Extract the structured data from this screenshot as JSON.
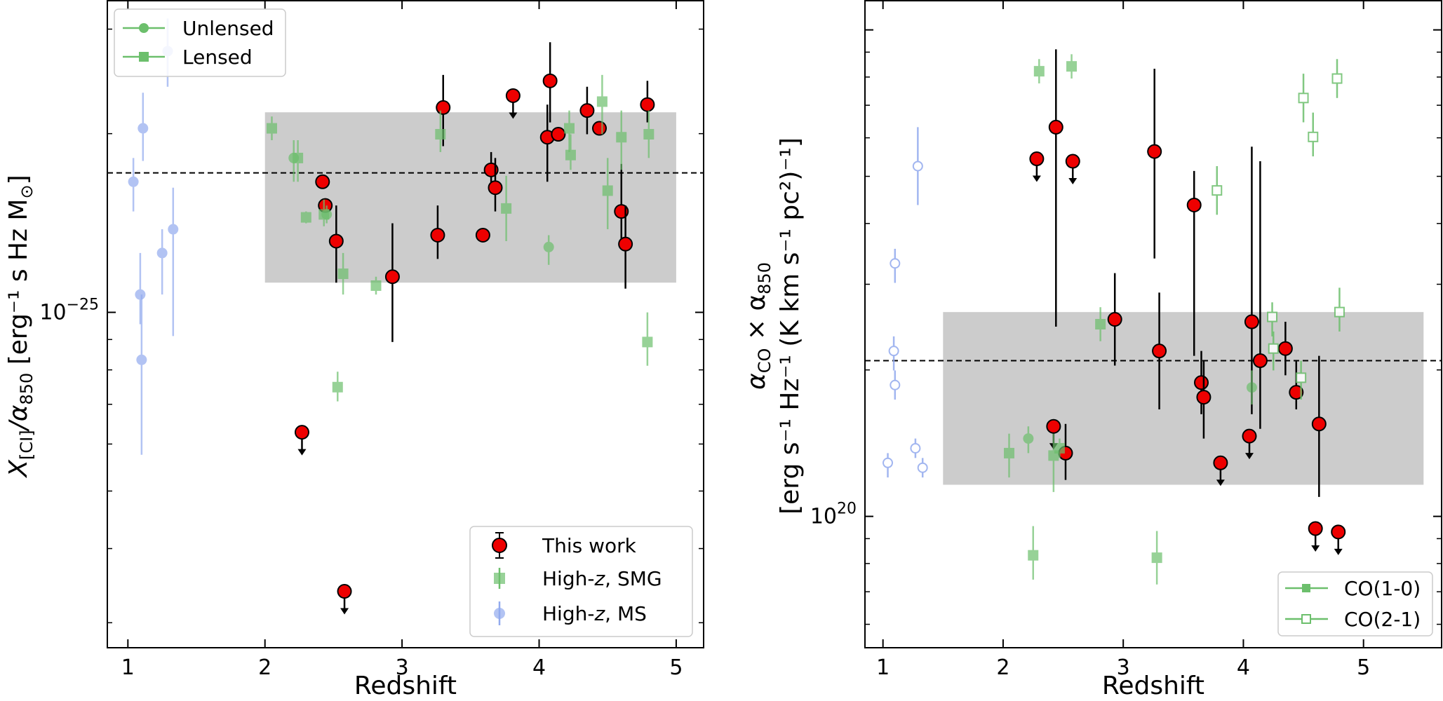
{
  "chart_data": [
    {
      "type": "scatter",
      "xlabel": "Redshift",
      "ylabel_parts": {
        "base": "X",
        "sub": "[CI]",
        "rest": "/α",
        "sub2": "850",
        "units": " [erg⁻¹ s Hz M",
        "sun": "⊙"
      },
      "y_scale": "log",
      "xlim": [
        0.85,
        5.2
      ],
      "ylim_log10": [
        -25.565,
        -24.475
      ],
      "x_ticks": [
        1,
        2,
        3,
        4,
        5
      ],
      "x_tick_labels": [
        "1",
        "2",
        "3",
        "4",
        "5"
      ],
      "y_tick_label": {
        "base": "10",
        "exp": "−25"
      },
      "y_tick_value_log10": -25,
      "shaded_region": {
        "x": [
          2.0,
          5.0
        ],
        "y_log10": [
          -24.95,
          -24.663
        ]
      },
      "reference_line_log10": -24.765,
      "legend_top": {
        "placement": "top-left",
        "entries": [
          {
            "label": "Unlensed",
            "marker": "circle"
          },
          {
            "label": "Lensed",
            "marker": "square"
          }
        ]
      },
      "legend_bottom": {
        "placement": "lower-right",
        "entries": [
          "This work",
          "High-z, SMG",
          "High-z, MS"
        ]
      },
      "colors": {
        "this_work": "#ee0000",
        "smg": "#6cbf6c",
        "ms": "#92aaee",
        "shade": "#cccccc"
      },
      "series": [
        {
          "name": "This work",
          "points": [
            {
              "x": 2.27,
              "y": -25.202,
              "limit": true
            },
            {
              "x": 2.42,
              "y": -24.78
            },
            {
              "x": 2.44,
              "y": -24.82
            },
            {
              "x": 2.52,
              "y": -24.88,
              "lo": -24.95,
              "hi": -24.82
            },
            {
              "x": 2.58,
              "y": -25.47,
              "limit": true
            },
            {
              "x": 2.93,
              "y": -24.94,
              "lo": -25.05,
              "hi": -24.85
            },
            {
              "x": 3.26,
              "y": -24.87,
              "lo": -24.91,
              "hi": -24.82
            },
            {
              "x": 3.3,
              "y": -24.655,
              "lo": -24.72,
              "hi": -24.6
            },
            {
              "x": 3.59,
              "y": -24.87
            },
            {
              "x": 3.65,
              "y": -24.76,
              "lo": -24.79,
              "hi": -24.73
            },
            {
              "x": 3.68,
              "y": -24.79,
              "lo": -24.83,
              "hi": -24.74
            },
            {
              "x": 3.81,
              "y": -24.635,
              "limit": true
            },
            {
              "x": 4.06,
              "y": -24.705,
              "lo": -24.78,
              "hi": -24.65
            },
            {
              "x": 4.08,
              "y": -24.61,
              "lo": -24.68,
              "hi": -24.545
            },
            {
              "x": 4.14,
              "y": -24.7
            },
            {
              "x": 4.35,
              "y": -24.66,
              "lo": -24.7,
              "hi": -24.62
            },
            {
              "x": 4.44,
              "y": -24.69
            },
            {
              "x": 4.6,
              "y": -24.83,
              "lo": -24.88,
              "hi": -24.75
            },
            {
              "x": 4.63,
              "y": -24.885,
              "lo": -24.96,
              "hi": -24.82
            },
            {
              "x": 4.79,
              "y": -24.65,
              "lo": -24.68,
              "hi": -24.61
            }
          ]
        },
        {
          "name": "High-z, SMG",
          "points": [
            {
              "x": 2.05,
              "y": -24.69,
              "lo": -24.71,
              "hi": -24.67,
              "marker": "square"
            },
            {
              "x": 2.21,
              "y": -24.74,
              "lo": -24.78,
              "hi": -24.71,
              "marker": "circle"
            },
            {
              "x": 2.24,
              "y": -24.74,
              "lo": -24.78,
              "hi": -24.71,
              "marker": "square"
            },
            {
              "x": 2.3,
              "y": -24.84,
              "lo": -24.85,
              "hi": -24.83,
              "marker": "square"
            },
            {
              "x": 2.43,
              "y": -24.835,
              "lo": -24.855,
              "hi": -24.81,
              "marker": "square"
            },
            {
              "x": 2.45,
              "y": -24.835,
              "lo": -24.85,
              "hi": -24.82,
              "marker": "circle"
            },
            {
              "x": 2.53,
              "y": -25.126,
              "lo": -25.15,
              "hi": -25.1,
              "marker": "square"
            },
            {
              "x": 2.57,
              "y": -24.935,
              "lo": -24.97,
              "hi": -24.9,
              "marker": "square"
            },
            {
              "x": 2.81,
              "y": -24.955,
              "lo": -24.97,
              "hi": -24.94,
              "marker": "square"
            },
            {
              "x": 3.28,
              "y": -24.7,
              "lo": -24.73,
              "hi": -24.66,
              "marker": "square"
            },
            {
              "x": 3.76,
              "y": -24.825,
              "lo": -24.88,
              "hi": -24.77,
              "marker": "square"
            },
            {
              "x": 4.07,
              "y": -24.89,
              "lo": -24.92,
              "hi": -24.87,
              "marker": "circle"
            },
            {
              "x": 4.22,
              "y": -24.69,
              "lo": -24.73,
              "hi": -24.66,
              "marker": "square"
            },
            {
              "x": 4.23,
              "y": -24.735,
              "lo": -24.76,
              "hi": -24.7,
              "marker": "square"
            },
            {
              "x": 4.46,
              "y": -24.645,
              "lo": -24.7,
              "hi": -24.6,
              "marker": "square"
            },
            {
              "x": 4.5,
              "y": -24.795,
              "lo": -24.86,
              "hi": -24.74,
              "marker": "square"
            },
            {
              "x": 4.6,
              "y": -24.705,
              "lo": -24.76,
              "hi": -24.66,
              "marker": "square"
            },
            {
              "x": 4.79,
              "y": -25.05,
              "lo": -25.09,
              "hi": -25.0,
              "marker": "square"
            },
            {
              "x": 4.8,
              "y": -24.7,
              "lo": -24.74,
              "hi": -24.66,
              "marker": "square"
            }
          ]
        },
        {
          "name": "High-z, MS",
          "points": [
            {
              "x": 1.04,
              "y": -24.78,
              "lo": -24.83,
              "hi": -24.74,
              "marker": "circle"
            },
            {
              "x": 1.09,
              "y": -24.97,
              "lo": -25.02,
              "hi": -24.9,
              "marker": "circle"
            },
            {
              "x": 1.1,
              "y": -25.08,
              "lo": -25.24,
              "hi": -24.97,
              "marker": "circle"
            },
            {
              "x": 1.11,
              "y": -24.69,
              "lo": -24.745,
              "hi": -24.63,
              "marker": "circle"
            },
            {
              "x": 1.25,
              "y": -24.9,
              "lo": -24.97,
              "hi": -24.86,
              "marker": "circle"
            },
            {
              "x": 1.29,
              "y": -24.56,
              "lo": -24.62,
              "hi": -24.505,
              "marker": "circle"
            },
            {
              "x": 1.33,
              "y": -24.86,
              "lo": -25.04,
              "hi": -24.79,
              "marker": "circle"
            }
          ]
        }
      ]
    },
    {
      "type": "scatter",
      "xlabel": "Redshift",
      "ylabel_line1": {
        "a": "α",
        "asub": "CO",
        "mid": " × α",
        "bsub": "850"
      },
      "ylabel_line2": "[erg s⁻¹ Hz⁻¹ (K km s⁻¹ pc²)⁻¹]",
      "y_scale": "log",
      "xlim": [
        0.85,
        5.65
      ],
      "ylim_log10": [
        19.73,
        21.06
      ],
      "x_ticks": [
        1,
        2,
        3,
        4,
        5
      ],
      "x_tick_labels": [
        "1",
        "2",
        "3",
        "4",
        "5"
      ],
      "y_tick_label": {
        "base": "10",
        "exp": "20"
      },
      "y_tick_value_log10": 20,
      "shaded_region": {
        "x": [
          1.5,
          5.5
        ],
        "y_log10": [
          20.065,
          20.42
        ]
      },
      "reference_line_log10": 20.32,
      "legend": {
        "placement": "lower-right",
        "entries": [
          {
            "label": "CO(1-0)",
            "marker": "filled-square"
          },
          {
            "label": "CO(2-1)",
            "marker": "open-square"
          }
        ]
      },
      "colors": {
        "this_work": "#ee0000",
        "co10": "#6cbf6c",
        "co21": "#6cbf6c",
        "ms_open": "#92aaee",
        "shade": "#cccccc"
      },
      "series": [
        {
          "name": "This work",
          "points": [
            {
              "x": 2.28,
              "y": 20.735,
              "limit": true
            },
            {
              "x": 2.42,
              "y": 20.185,
              "limit": true
            },
            {
              "x": 2.44,
              "y": 20.8,
              "lo": 20.39,
              "hi": 20.96
            },
            {
              "x": 2.52,
              "y": 20.13,
              "lo": 20.075,
              "hi": 20.19
            },
            {
              "x": 2.58,
              "y": 20.73,
              "limit": true
            },
            {
              "x": 2.93,
              "y": 20.405,
              "lo": 20.31,
              "hi": 20.5
            },
            {
              "x": 3.26,
              "y": 20.75,
              "lo": 20.53,
              "hi": 20.92
            },
            {
              "x": 3.3,
              "y": 20.34,
              "lo": 20.22,
              "hi": 20.46
            },
            {
              "x": 3.59,
              "y": 20.64,
              "lo": 20.33,
              "hi": 20.71
            },
            {
              "x": 3.65,
              "y": 20.275,
              "lo": 20.21,
              "hi": 20.34
            },
            {
              "x": 3.67,
              "y": 20.245,
              "lo": 20.16,
              "hi": 20.32
            },
            {
              "x": 3.81,
              "y": 20.11,
              "limit": true
            },
            {
              "x": 4.05,
              "y": 20.165,
              "limit": true
            },
            {
              "x": 4.07,
              "y": 20.4,
              "lo": 20.21,
              "hi": 20.76
            },
            {
              "x": 4.14,
              "y": 20.32,
              "lo": 20.18,
              "hi": 20.73
            },
            {
              "x": 4.35,
              "y": 20.345,
              "lo": 20.29,
              "hi": 20.4
            },
            {
              "x": 4.44,
              "y": 20.255,
              "lo": 20.22,
              "hi": 20.32
            },
            {
              "x": 4.6,
              "y": 19.975,
              "limit": true
            },
            {
              "x": 4.63,
              "y": 20.19,
              "lo": 20.04,
              "hi": 20.33
            },
            {
              "x": 4.79,
              "y": 19.968,
              "limit": true
            }
          ]
        },
        {
          "name": "CO(1-0)",
          "points": [
            {
              "x": 2.05,
              "y": 20.13,
              "lo": 20.08,
              "hi": 20.17,
              "marker": "square"
            },
            {
              "x": 2.21,
              "y": 20.16,
              "lo": 20.13,
              "hi": 20.185,
              "marker": "circle"
            },
            {
              "x": 2.25,
              "y": 19.92,
              "lo": 19.87,
              "hi": 19.98,
              "marker": "square"
            },
            {
              "x": 2.3,
              "y": 20.915,
              "lo": 20.89,
              "hi": 20.94,
              "marker": "square"
            },
            {
              "x": 2.42,
              "y": 20.125,
              "lo": 20.05,
              "hi": 20.17,
              "marker": "square"
            },
            {
              "x": 2.47,
              "y": 20.14,
              "lo": 20.12,
              "hi": 20.16,
              "marker": "square"
            },
            {
              "x": 2.57,
              "y": 20.925,
              "lo": 20.9,
              "hi": 20.95,
              "marker": "square"
            },
            {
              "x": 2.81,
              "y": 20.395,
              "lo": 20.36,
              "hi": 20.43,
              "marker": "square"
            },
            {
              "x": 3.28,
              "y": 19.915,
              "lo": 19.86,
              "hi": 19.97,
              "marker": "square"
            },
            {
              "x": 4.07,
              "y": 20.265,
              "lo": 20.23,
              "hi": 20.3,
              "marker": "circle"
            }
          ]
        },
        {
          "name": "CO(2-1)",
          "points": [
            {
              "x": 3.78,
              "y": 20.67,
              "lo": 20.62,
              "hi": 20.72
            },
            {
              "x": 4.24,
              "y": 20.41,
              "lo": 20.37,
              "hi": 20.44
            },
            {
              "x": 4.25,
              "y": 20.345,
              "lo": 20.3,
              "hi": 20.38
            },
            {
              "x": 4.48,
              "y": 20.285,
              "lo": 20.24,
              "hi": 20.32
            },
            {
              "x": 4.5,
              "y": 20.86,
              "lo": 20.81,
              "hi": 20.91
            },
            {
              "x": 4.58,
              "y": 20.78,
              "lo": 20.74,
              "hi": 20.83
            },
            {
              "x": 4.78,
              "y": 20.9,
              "lo": 20.86,
              "hi": 20.94
            },
            {
              "x": 4.8,
              "y": 20.42,
              "lo": 20.38,
              "hi": 20.47
            }
          ]
        },
        {
          "name": "High-z, MS (open)",
          "points": [
            {
              "x": 1.04,
              "y": 20.11,
              "lo": 20.08,
              "hi": 20.13
            },
            {
              "x": 1.09,
              "y": 20.34,
              "lo": 20.3,
              "hi": 20.37
            },
            {
              "x": 1.1,
              "y": 20.52,
              "lo": 20.48,
              "hi": 20.55
            },
            {
              "x": 1.1,
              "y": 20.27,
              "lo": 20.24,
              "hi": 20.3
            },
            {
              "x": 1.27,
              "y": 20.14,
              "lo": 20.12,
              "hi": 20.16
            },
            {
              "x": 1.29,
              "y": 20.72,
              "lo": 20.64,
              "hi": 20.8
            },
            {
              "x": 1.33,
              "y": 20.1,
              "lo": 20.08,
              "hi": 20.12
            }
          ]
        }
      ]
    }
  ]
}
